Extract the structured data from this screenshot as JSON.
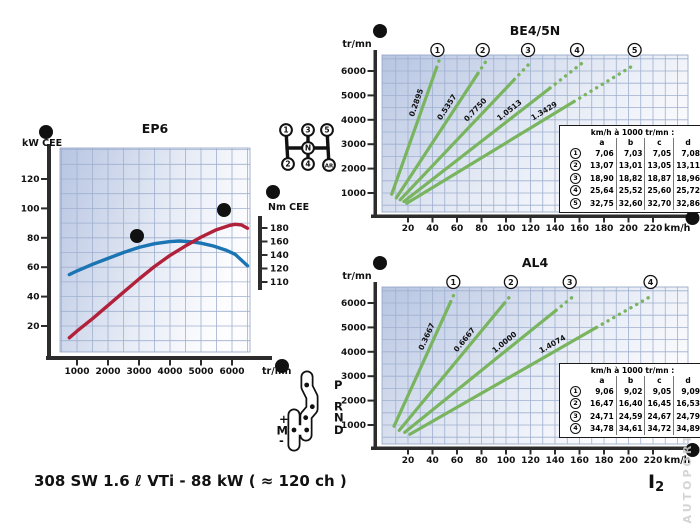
{
  "page": {
    "caption": "308 SW 1.6 ℓ VTi - 88 kW ( ≈ 120 ch )",
    "page_marker": "I",
    "page_marker_sub": "2",
    "watermark": "AUTOPORT.UA"
  },
  "colors": {
    "accent_green": "#79b45f",
    "power_red": "#b2213a",
    "torque_blue": "#1b74b3",
    "plot_blue": "#b7c5e2",
    "plot_fade": "#fdfdff",
    "grid": "#9fb0cf",
    "axis_dark": "#2c2c2c",
    "badge_black": "#111111"
  },
  "manual_shifter": {
    "labels": [
      "1",
      "3",
      "5",
      "N",
      "2",
      "4",
      "AR"
    ]
  },
  "auto_shifter": {
    "gear_labels": [
      "P",
      "R",
      "N",
      "D"
    ],
    "mode_labels": [
      "+",
      "M",
      "-"
    ]
  },
  "chart_data": [
    {
      "id": "ep6",
      "type": "line",
      "title": "EP6",
      "y_axis_label": "kW CEE",
      "right_axis_label": "Nm CEE",
      "x_axis_label": "tr/mn",
      "x_ticks": [
        1000,
        2000,
        3000,
        4000,
        5000,
        6000
      ],
      "y_ticks": [
        20,
        40,
        60,
        80,
        100,
        120
      ],
      "right_axis_ticks": [
        180,
        160,
        140,
        120,
        110
      ],
      "xlim": [
        300,
        6600
      ],
      "ylim_kw": [
        0,
        142
      ],
      "badges": {
        "y_axis": "b",
        "x_axis": "a",
        "right_axis": "c",
        "power": "d",
        "torque": "e"
      },
      "series": [
        {
          "name": "power",
          "unit": "kW",
          "color_key": "power_red",
          "badge": "d",
          "points": [
            [
              750,
              12
            ],
            [
              1000,
              16.5
            ],
            [
              1500,
              25
            ],
            [
              2000,
              34
            ],
            [
              2500,
              43
            ],
            [
              3000,
              52
            ],
            [
              3500,
              60.5
            ],
            [
              4000,
              68
            ],
            [
              4500,
              74.5
            ],
            [
              5000,
              80.5
            ],
            [
              5500,
              85.5
            ],
            [
              5900,
              88.3
            ],
            [
              6100,
              89.2
            ],
            [
              6300,
              88.8
            ],
            [
              6500,
              86.5
            ]
          ]
        },
        {
          "name": "torque",
          "unit": "Nm",
          "color_key": "torque_blue",
          "badge": "e",
          "axis": "right",
          "points_left_scale": [
            [
              750,
              55
            ],
            [
              1000,
              57.5
            ],
            [
              1500,
              62
            ],
            [
              2000,
              66
            ],
            [
              2500,
              70
            ],
            [
              3000,
              73.5
            ],
            [
              3500,
              76
            ],
            [
              4000,
              77.4
            ],
            [
              4300,
              77.8
            ],
            [
              4700,
              77.3
            ],
            [
              5000,
              76.3
            ],
            [
              5400,
              74.4
            ],
            [
              5800,
              71.6
            ],
            [
              6100,
              68.8
            ],
            [
              6500,
              61
            ]
          ],
          "points_nm_est": [
            [
              750,
              113
            ],
            [
              1500,
              128
            ],
            [
              2500,
              144
            ],
            [
              3500,
              157
            ],
            [
              4300,
              160
            ],
            [
              5000,
              157
            ],
            [
              5800,
              147
            ],
            [
              6500,
              126
            ]
          ]
        }
      ]
    },
    {
      "id": "be4",
      "type": "line",
      "title": "BE4/5N",
      "x_axis_label": "km/h",
      "y_axis_label": "tr/mn",
      "badge_top_left": "a",
      "badge_axis_end": "f",
      "x_ticks": [
        20,
        40,
        60,
        80,
        100,
        120,
        140,
        160,
        180,
        200,
        220
      ],
      "y_ticks": [
        1000,
        2000,
        3000,
        4000,
        5000,
        6000
      ],
      "xlim": [
        0,
        248
      ],
      "ylim_rpm": [
        200,
        6650
      ],
      "gears": [
        {
          "num": "1",
          "ratio_label": "0.2895",
          "kmh_per_1000rpm": 7.06,
          "start_rpm": 950,
          "solid_to_rpm": 6150,
          "dotted_to_rpm": 6500,
          "circle_kmh": 44,
          "label_rpm": 4600
        },
        {
          "num": "2",
          "ratio_label": "0.5357",
          "kmh_per_1000rpm": 13.07,
          "start_rpm": 800,
          "solid_to_rpm": 5900,
          "dotted_to_rpm": 6480,
          "circle_kmh": 81,
          "label_rpm": 4350
        },
        {
          "num": "3",
          "ratio_label": "0.7750",
          "kmh_per_1000rpm": 18.9,
          "start_rpm": 720,
          "solid_to_rpm": 5650,
          "dotted_to_rpm": 6420,
          "circle_kmh": 118,
          "label_rpm": 4200
        },
        {
          "num": "4",
          "ratio_label": "1.0513",
          "kmh_per_1000rpm": 25.64,
          "start_rpm": 650,
          "solid_to_rpm": 5300,
          "dotted_to_rpm": 6300,
          "circle_kmh": 158,
          "label_rpm": 4150
        },
        {
          "num": "5",
          "ratio_label": "1.3429",
          "kmh_per_1000rpm": 32.75,
          "start_rpm": 580,
          "solid_to_rpm": 4750,
          "dotted_to_rpm": 6250,
          "circle_kmh": 205,
          "label_rpm": 4100
        }
      ],
      "table": {
        "header": "km/h à 1000 tr/mn :",
        "columns": [
          "a",
          "b",
          "c",
          "d"
        ],
        "rows": [
          {
            "gear": "1",
            "values": [
              "7,06",
              "7,03",
              "7,05",
              "7,08"
            ]
          },
          {
            "gear": "2",
            "values": [
              "13,07",
              "13,01",
              "13,05",
              "13,11"
            ]
          },
          {
            "gear": "3",
            "values": [
              "18,90",
              "18,82",
              "18,87",
              "18,96"
            ]
          },
          {
            "gear": "4",
            "values": [
              "25,64",
              "25,52",
              "25,60",
              "25,72"
            ]
          },
          {
            "gear": "5",
            "values": [
              "32,75",
              "32,60",
              "32,70",
              "32,86"
            ]
          }
        ]
      }
    },
    {
      "id": "al4",
      "type": "line",
      "title": "AL4",
      "x_axis_label": "km/h",
      "y_axis_label": "tr/mn",
      "badge_top_left": "a",
      "badge_axis_end": "f",
      "x_ticks": [
        20,
        40,
        60,
        80,
        100,
        120,
        140,
        160,
        180,
        200,
        220
      ],
      "y_ticks": [
        1000,
        2000,
        3000,
        4000,
        5000,
        6000
      ],
      "xlim": [
        0,
        248
      ],
      "ylim_rpm": [
        200,
        6650
      ],
      "gears": [
        {
          "num": "1",
          "ratio_label": "0.3667",
          "kmh_per_1000rpm": 9.06,
          "start_rpm": 950,
          "solid_to_rpm": 6050,
          "dotted_to_rpm": 6300,
          "circle_kmh": 57,
          "label_rpm": 4500
        },
        {
          "num": "2",
          "ratio_label": "0.6667",
          "kmh_per_1000rpm": 16.47,
          "start_rpm": 780,
          "solid_to_rpm": 6000,
          "dotted_to_rpm": 6350,
          "circle_kmh": 104,
          "label_rpm": 4300
        },
        {
          "num": "3",
          "ratio_label": "1.0000",
          "kmh_per_1000rpm": 24.71,
          "start_rpm": 700,
          "solid_to_rpm": 5700,
          "dotted_to_rpm": 6350,
          "circle_kmh": 152,
          "label_rpm": 4150
        },
        {
          "num": "4",
          "ratio_label": "1.4074",
          "kmh_per_1000rpm": 34.78,
          "start_rpm": 620,
          "solid_to_rpm": 5000,
          "dotted_to_rpm": 6250,
          "circle_kmh": 218,
          "label_rpm": 4050
        }
      ],
      "table": {
        "header": "km/h à 1000 tr/mn :",
        "columns": [
          "a",
          "b",
          "c",
          "d"
        ],
        "rows": [
          {
            "gear": "1",
            "values": [
              "9,06",
              "9,02",
              "9,05",
              "9,09"
            ]
          },
          {
            "gear": "2",
            "values": [
              "16,47",
              "16,40",
              "16,45",
              "16,53"
            ]
          },
          {
            "gear": "3",
            "values": [
              "24,71",
              "24,59",
              "24,67",
              "24,79"
            ]
          },
          {
            "gear": "4",
            "values": [
              "34,78",
              "34,61",
              "34,72",
              "34,89"
            ]
          }
        ]
      }
    }
  ]
}
